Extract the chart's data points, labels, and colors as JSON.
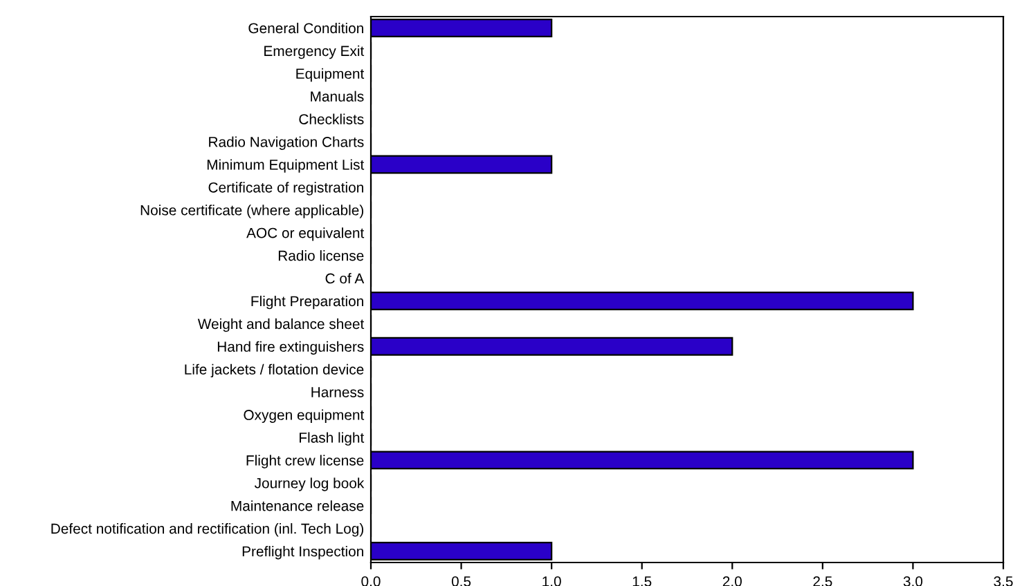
{
  "chart_data": {
    "type": "bar",
    "orientation": "horizontal",
    "categories": [
      "General Condition",
      "Emergency Exit",
      "Equipment",
      "Manuals",
      "Checklists",
      "Radio Navigation Charts",
      "Minimum Equipment List",
      "Certificate of registration",
      "Noise certificate (where applicable)",
      "AOC or equivalent",
      "Radio license",
      "C of A",
      "Flight Preparation",
      "Weight and balance sheet",
      "Hand fire extinguishers",
      "Life jackets / flotation device",
      "Harness",
      "Oxygen equipment",
      "Flash light",
      "Flight crew license",
      "Journey log book",
      "Maintenance release",
      "Defect notification and rectification (inl. Tech Log)",
      "Preflight Inspection"
    ],
    "values": [
      1,
      0,
      0,
      0,
      0,
      0,
      1,
      0,
      0,
      0,
      0,
      0,
      3,
      0,
      2,
      0,
      0,
      0,
      0,
      3,
      0,
      0,
      0,
      1
    ],
    "color": "#2a00c8",
    "xlim": [
      0,
      3.5
    ],
    "xticks": [
      {
        "value": 0,
        "label": "0.0"
      },
      0.5,
      {
        "value": 1,
        "label": "1.0"
      },
      1.5,
      {
        "value": 2,
        "label": "2.0"
      },
      2.5,
      {
        "value": 3,
        "label": "3.0"
      },
      3.5
    ],
    "grid": false,
    "legend": false
  }
}
